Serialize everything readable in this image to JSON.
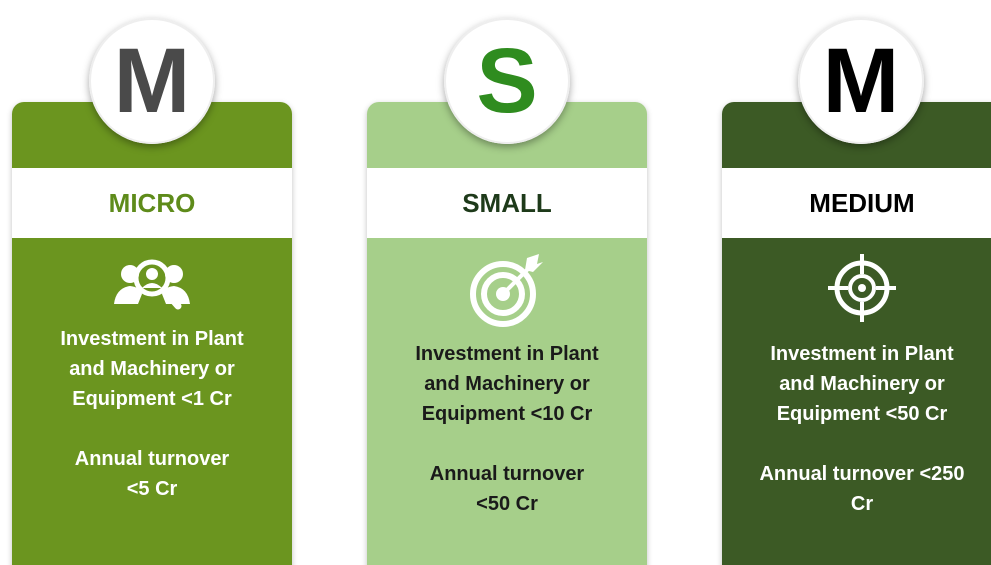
{
  "cards": [
    {
      "letter": "M",
      "title": "MICRO",
      "investment": [
        "Investment in Plant",
        "and Machinery or",
        "Equipment <1 Cr"
      ],
      "turnover": [
        "Annual turnover",
        "<5 Cr"
      ]
    },
    {
      "letter": "S",
      "title": "SMALL",
      "investment": [
        "Investment in Plant",
        "and Machinery or",
        "Equipment <10 Cr"
      ],
      "turnover": [
        "Annual turnover",
        "<50 Cr"
      ]
    },
    {
      "letter": "M",
      "title": "MEDIUM",
      "investment": [
        "Investment in Plant",
        "and Machinery or",
        "Equipment <50 Cr"
      ],
      "turnover": [
        "Annual turnover <250",
        "Cr"
      ]
    }
  ]
}
